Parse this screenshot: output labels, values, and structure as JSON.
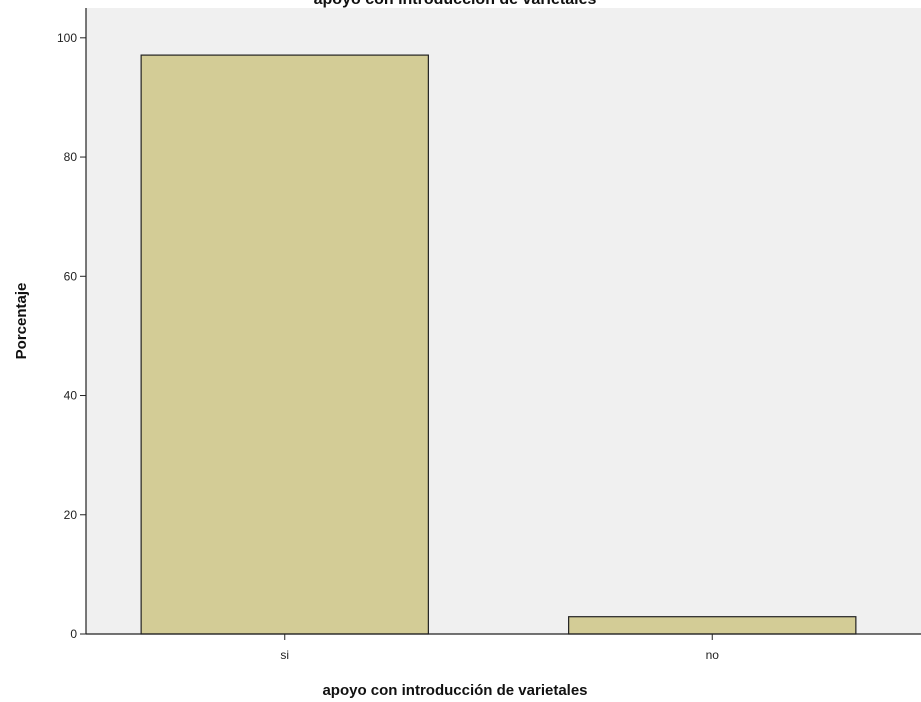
{
  "chart_data": {
    "type": "bar",
    "title": "apoyo con introducción de varietales",
    "xlabel": "apoyo con introducción de varietales",
    "ylabel": "Porcentaje",
    "categories": [
      "si",
      "no"
    ],
    "values": [
      97.1,
      2.9
    ],
    "ylim": [
      0,
      105
    ],
    "yticks": [
      0,
      20,
      40,
      60,
      80,
      100
    ],
    "grid": false,
    "legend": "none",
    "colors": {
      "bar_fill": "#d3cc96",
      "bar_stroke": "#222222",
      "plot_background": "#f0f0f0",
      "axis": "#222222"
    }
  }
}
